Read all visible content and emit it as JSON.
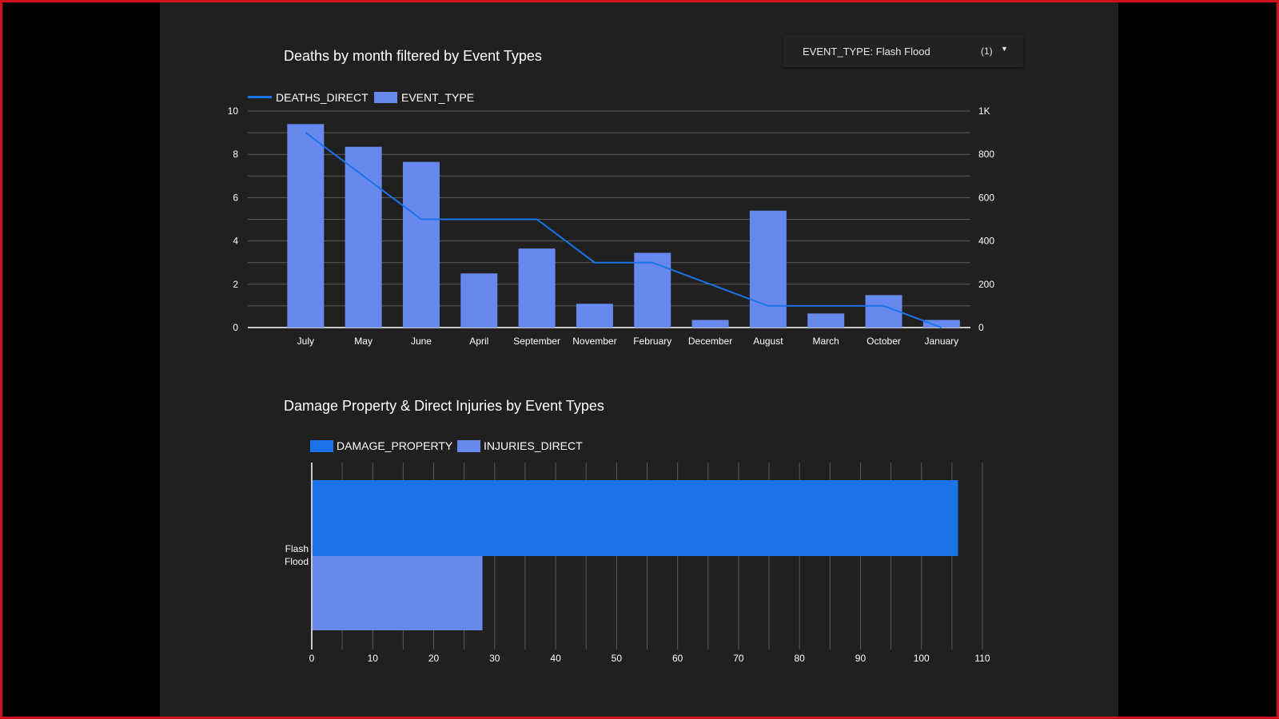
{
  "filter": {
    "label": "EVENT_TYPE: Flash Flood",
    "count": "(1)",
    "icon": "caret-down-icon"
  },
  "chart_data": [
    {
      "type": "bar",
      "title": "Deaths by month filtered by Event Types",
      "categories": [
        "July",
        "May",
        "June",
        "April",
        "September",
        "November",
        "February",
        "December",
        "August",
        "March",
        "October",
        "January"
      ],
      "series": [
        {
          "name": "DEATHS_DIRECT",
          "render": "line",
          "axis": "left",
          "color": "#1a73e8",
          "values": [
            9,
            7,
            5,
            5,
            5,
            3,
            3,
            2,
            1,
            1,
            1,
            0
          ]
        },
        {
          "name": "EVENT_TYPE",
          "render": "bar",
          "axis": "right",
          "color": "#6789ed",
          "values": [
            940,
            835,
            765,
            250,
            365,
            110,
            345,
            35,
            540,
            65,
            150,
            35
          ]
        }
      ],
      "ylim_left": [
        0,
        10
      ],
      "ylim_right": [
        0,
        1000
      ],
      "yticks_left": [
        "0",
        "2",
        "4",
        "6",
        "8",
        "10"
      ],
      "yticks_right": [
        "0",
        "200",
        "400",
        "600",
        "800",
        "1K"
      ],
      "legend_position": "top-left",
      "grid": true
    },
    {
      "type": "bar",
      "orientation": "horizontal",
      "title": "Damage Property & Direct Injuries by Event Types",
      "categories": [
        "Flash\nFlood"
      ],
      "series": [
        {
          "name": "DAMAGE_PROPERTY",
          "color": "#1a73e8",
          "values": [
            106
          ]
        },
        {
          "name": "INJURIES_DIRECT",
          "color": "#6789ed",
          "values": [
            28
          ]
        }
      ],
      "xlim": [
        0,
        110
      ],
      "xticks": [
        "0",
        "10",
        "20",
        "30",
        "40",
        "50",
        "60",
        "70",
        "80",
        "90",
        "100",
        "110"
      ],
      "legend_position": "top-left",
      "grid": true
    }
  ]
}
